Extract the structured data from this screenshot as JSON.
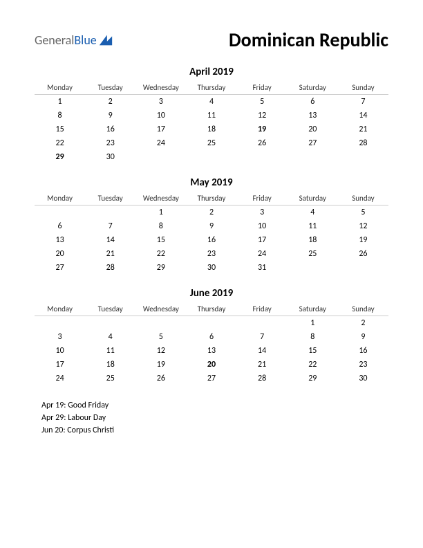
{
  "logo": {
    "part1": "General",
    "part2": "Blue",
    "arrow_color": "#1a5eb0",
    "text1_color": "#666666",
    "text2_color": "#1a5eb0"
  },
  "title": "Dominican Republic",
  "day_headers": [
    "Monday",
    "Tuesday",
    "Wednesday",
    "Thursday",
    "Friday",
    "Saturday",
    "Sunday"
  ],
  "months": [
    {
      "name": "April 2019",
      "weeks": [
        [
          "1",
          "2",
          "3",
          "4",
          "5",
          "6",
          "7"
        ],
        [
          "8",
          "9",
          "10",
          "11",
          "12",
          "13",
          "14"
        ],
        [
          "15",
          "16",
          "17",
          "18",
          "19",
          "20",
          "21"
        ],
        [
          "22",
          "23",
          "24",
          "25",
          "26",
          "27",
          "28"
        ],
        [
          "29",
          "30",
          "",
          "",
          "",
          "",
          ""
        ]
      ],
      "holidays": [
        "19",
        "29"
      ]
    },
    {
      "name": "May 2019",
      "weeks": [
        [
          "",
          "",
          "1",
          "2",
          "3",
          "4",
          "5"
        ],
        [
          "6",
          "7",
          "8",
          "9",
          "10",
          "11",
          "12"
        ],
        [
          "13",
          "14",
          "15",
          "16",
          "17",
          "18",
          "19"
        ],
        [
          "20",
          "21",
          "22",
          "23",
          "24",
          "25",
          "26"
        ],
        [
          "27",
          "28",
          "29",
          "30",
          "31",
          "",
          ""
        ]
      ],
      "holidays": []
    },
    {
      "name": "June 2019",
      "weeks": [
        [
          "",
          "",
          "",
          "",
          "",
          "1",
          "2"
        ],
        [
          "3",
          "4",
          "5",
          "6",
          "7",
          "8",
          "9"
        ],
        [
          "10",
          "11",
          "12",
          "13",
          "14",
          "15",
          "16"
        ],
        [
          "17",
          "18",
          "19",
          "20",
          "21",
          "22",
          "23"
        ],
        [
          "24",
          "25",
          "26",
          "27",
          "28",
          "29",
          "30"
        ]
      ],
      "holidays": [
        "20"
      ]
    }
  ],
  "holiday_list": [
    "Apr 19: Good Friday",
    "Apr 29: Labour Day",
    "Jun 20: Corpus Christi"
  ],
  "colors": {
    "holiday_text": "#cc0000",
    "header_border": "#cccccc",
    "body_text": "#000000",
    "background": "#ffffff"
  },
  "fonts": {
    "title_size_pt": 28,
    "month_title_size_pt": 15,
    "day_header_size_pt": 11,
    "cell_size_pt": 12,
    "holiday_list_size_pt": 12
  }
}
